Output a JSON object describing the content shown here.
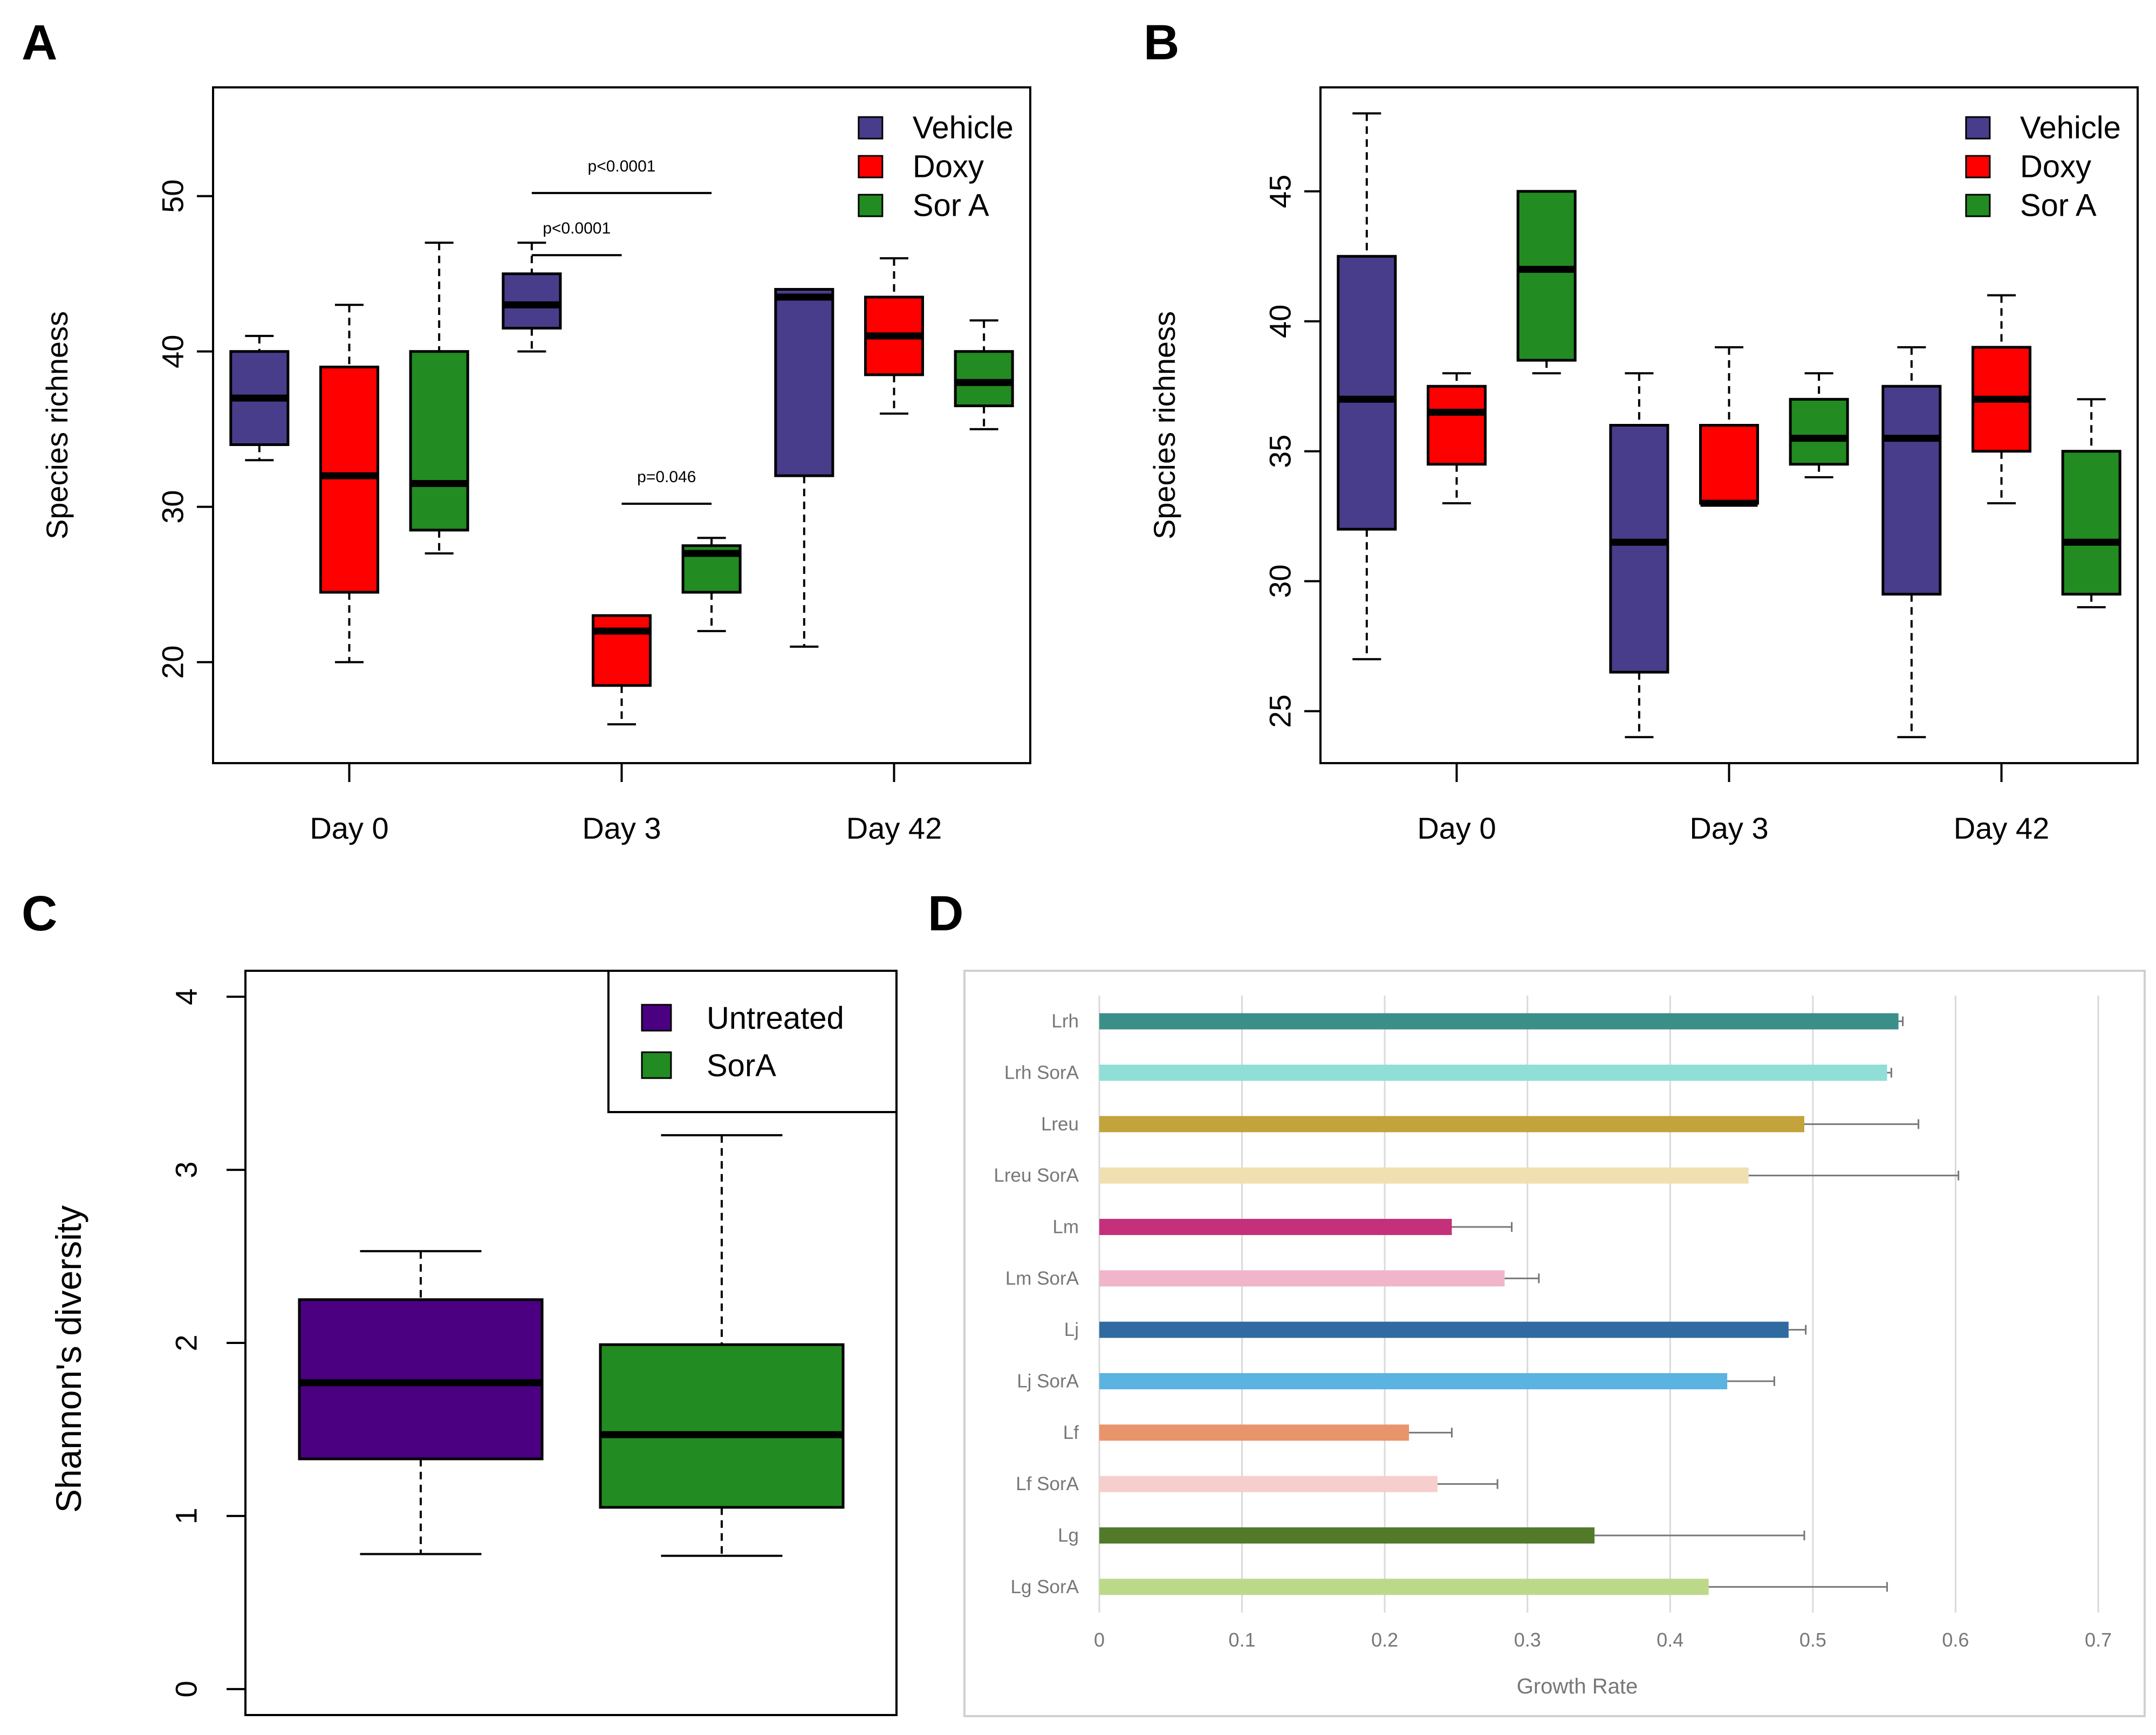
{
  "chart_data": [
    {
      "panel": "A",
      "type": "box",
      "ylabel": "Species richness",
      "categories": [
        "Day 0",
        "Day 3",
        "Day 42"
      ],
      "ylim": [
        13.5,
        57
      ],
      "yticks": [
        20,
        30,
        40,
        50
      ],
      "legend": [
        {
          "name": "Vehicle",
          "color": "#483d8b"
        },
        {
          "name": "Doxy",
          "color": "#ff0000"
        },
        {
          "name": "Sor A",
          "color": "#228b22"
        }
      ],
      "series": [
        {
          "name": "Vehicle",
          "boxes": [
            {
              "min": 33,
              "q1": 34,
              "median": 37,
              "q3": 40,
              "max": 41
            },
            {
              "min": 40,
              "q1": 41.5,
              "median": 43,
              "q3": 45,
              "max": 47
            },
            {
              "min": 21,
              "q1": 32,
              "median": 43.5,
              "q3": 44,
              "max": 44
            }
          ]
        },
        {
          "name": "Doxy",
          "boxes": [
            {
              "min": 20,
              "q1": 24.5,
              "median": 32,
              "q3": 39,
              "max": 43
            },
            {
              "min": 16,
              "q1": 18.5,
              "median": 22,
              "q3": 23,
              "max": 23
            },
            {
              "min": 36,
              "q1": 38.5,
              "median": 41,
              "q3": 43.5,
              "max": 46
            }
          ]
        },
        {
          "name": "Sor A",
          "boxes": [
            {
              "min": 27,
              "q1": 28.5,
              "median": 31.5,
              "q3": 40,
              "max": 47
            },
            {
              "min": 22,
              "q1": 24.5,
              "median": 27,
              "q3": 27.5,
              "max": 28
            },
            {
              "min": 35,
              "q1": 36.5,
              "median": 38,
              "q3": 40,
              "max": 42
            }
          ]
        }
      ],
      "annotations": [
        {
          "text": "p<0.0001",
          "day": 1,
          "from": 0,
          "to": 2,
          "y": 50.2
        },
        {
          "text": "p<0.0001",
          "day": 1,
          "from": 0,
          "to": 1,
          "y": 46.2
        },
        {
          "text": "p=0.046",
          "day": 1,
          "from": 1,
          "to": 2,
          "y": 30.2
        }
      ]
    },
    {
      "panel": "B",
      "type": "box",
      "ylabel": "Species richness",
      "categories": [
        "Day 0",
        "Day 3",
        "Day 42"
      ],
      "ylim": [
        23,
        49
      ],
      "yticks": [
        25,
        30,
        35,
        40,
        45
      ],
      "legend": [
        {
          "name": "Vehicle",
          "color": "#483d8b"
        },
        {
          "name": "Doxy",
          "color": "#ff0000"
        },
        {
          "name": "Sor A",
          "color": "#228b22"
        }
      ],
      "series": [
        {
          "name": "Vehicle",
          "boxes": [
            {
              "min": 27,
              "q1": 32,
              "median": 37,
              "q3": 42.5,
              "max": 48
            },
            {
              "min": 24,
              "q1": 26.5,
              "median": 31.5,
              "q3": 36,
              "max": 38
            },
            {
              "min": 24,
              "q1": 29.5,
              "median": 35.5,
              "q3": 37.5,
              "max": 39
            }
          ]
        },
        {
          "name": "Doxy",
          "boxes": [
            {
              "min": 33,
              "q1": 34.5,
              "median": 36.5,
              "q3": 37.5,
              "max": 38
            },
            {
              "min": 33,
              "q1": 33,
              "median": 33,
              "q3": 36,
              "max": 39
            },
            {
              "min": 33,
              "q1": 35,
              "median": 37,
              "q3": 39,
              "max": 41
            }
          ]
        },
        {
          "name": "Sor A",
          "boxes": [
            {
              "min": 38,
              "q1": 38.5,
              "median": 42,
              "q3": 45,
              "max": 45
            },
            {
              "min": 34,
              "q1": 34.5,
              "median": 35.5,
              "q3": 37,
              "max": 38
            },
            {
              "min": 29,
              "q1": 29.5,
              "median": 31.5,
              "q3": 35,
              "max": 37
            }
          ]
        }
      ]
    },
    {
      "panel": "C",
      "type": "box",
      "ylabel": "Shannon's diversity",
      "categories": [
        "Untreated",
        "SorA"
      ],
      "ylim": [
        -0.15,
        4.15
      ],
      "yticks": [
        0,
        1,
        2,
        3,
        4
      ],
      "legend": [
        {
          "name": "Untreated",
          "color": "#4b0082"
        },
        {
          "name": "SorA",
          "color": "#228b22"
        }
      ],
      "boxes": [
        {
          "name": "Untreated",
          "color": "#4b0082",
          "min": 0.78,
          "q1": 1.33,
          "median": 1.77,
          "q3": 2.25,
          "max": 2.53
        },
        {
          "name": "SorA",
          "color": "#228b22",
          "min": 0.77,
          "q1": 1.05,
          "median": 1.47,
          "q3": 1.99,
          "max": 3.2
        }
      ]
    },
    {
      "panel": "D",
      "type": "bar",
      "orientation": "horizontal",
      "xlabel": "Growth Rate",
      "xlim": [
        0,
        0.7
      ],
      "xticks": [
        "0",
        "0.1",
        "0.2",
        "0.3",
        "0.4",
        "0.5",
        "0.6",
        "0.7"
      ],
      "categories": [
        "Lrh",
        "Lrh SorA",
        "Lreu",
        "Lreu SorA",
        "Lm",
        "Lm SorA",
        "Lj",
        "Lj SorA",
        "Lf",
        "Lf SorA",
        "Lg",
        "Lg SorA"
      ],
      "values": [
        0.56,
        0.552,
        0.494,
        0.455,
        0.247,
        0.284,
        0.483,
        0.44,
        0.217,
        0.237,
        0.347,
        0.427
      ],
      "errors": [
        0.003,
        0.003,
        0.08,
        0.147,
        0.042,
        0.024,
        0.012,
        0.033,
        0.03,
        0.042,
        0.147,
        0.125
      ],
      "colors": [
        "#3a8f89",
        "#8fdfd7",
        "#c2a33c",
        "#f0e0b1",
        "#c4307a",
        "#f0b5cb",
        "#2f6ba1",
        "#5bb3e1",
        "#e8956b",
        "#f6cfcc",
        "#527a2a",
        "#bcd98a"
      ]
    }
  ],
  "panel_labels": {
    "a": "A",
    "b": "B",
    "c": "C",
    "d": "D"
  }
}
